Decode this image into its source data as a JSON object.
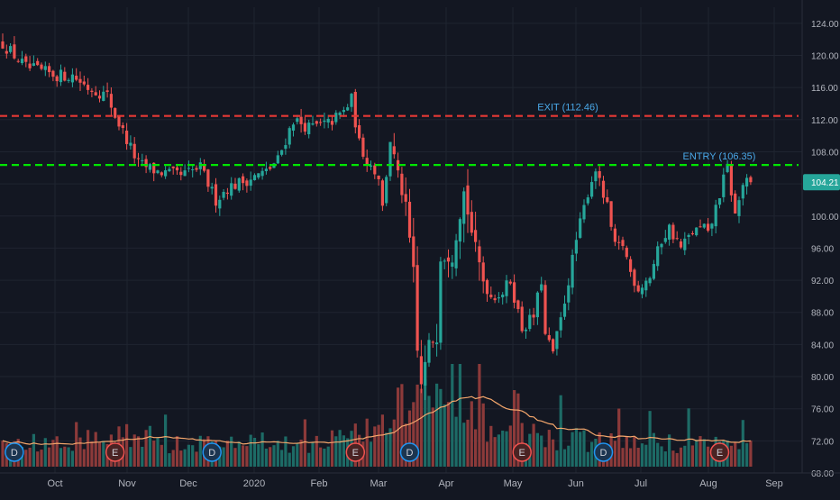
{
  "chart_data": {
    "type": "candlestick",
    "colors": {
      "background": "#131722",
      "grid": "#1f2430",
      "axis_text": "#b2b5be",
      "up": "#26a69a",
      "down": "#ef5350",
      "vol_up": "#1d6b66",
      "vol_down": "#8c3a3a",
      "exit_line": "#e53935",
      "entry_line": "#00e600",
      "label": "#4aa8e8",
      "volume_ma": "#f5a76c",
      "price_badge": "#26a69a"
    },
    "price_axis": {
      "ticks": [
        "124.00",
        "120.00",
        "116.00",
        "112.00",
        "108.00",
        "104.00",
        "100.00",
        "96.00",
        "92.00",
        "88.00",
        "84.00",
        "80.00",
        "76.00",
        "72.00",
        "68.00"
      ],
      "range": [
        68,
        126
      ]
    },
    "time_axis": {
      "labels": [
        "Oct",
        "Nov",
        "Dec",
        "2020",
        "Feb",
        "Mar",
        "Apr",
        "May",
        "Jun",
        "Jul",
        "Aug",
        "Sep"
      ]
    },
    "last_price": "104.21",
    "last_price_value": 104.21,
    "levels": [
      {
        "label": "EXIT (112.46)",
        "value": 112.46,
        "kind": "exit"
      },
      {
        "label": "ENTRY (106.35)",
        "value": 106.35,
        "kind": "entry"
      }
    ],
    "events": [
      {
        "letter": "D",
        "kind": "dividend",
        "bar": 3
      },
      {
        "letter": "E",
        "kind": "earnings",
        "bar": 29
      },
      {
        "letter": "D",
        "kind": "dividend",
        "bar": 54
      },
      {
        "letter": "E",
        "kind": "earnings",
        "bar": 91
      },
      {
        "letter": "D",
        "kind": "dividend",
        "bar": 105
      },
      {
        "letter": "E",
        "kind": "earnings",
        "bar": 134
      },
      {
        "letter": "D",
        "kind": "dividend",
        "bar": 155
      },
      {
        "letter": "E",
        "kind": "earnings",
        "bar": 185
      }
    ],
    "close_keyframes": [
      [
        0,
        121.5
      ],
      [
        6,
        118.5
      ],
      [
        10,
        118.0
      ],
      [
        14,
        117.5
      ],
      [
        18,
        117.5
      ],
      [
        22,
        116.0
      ],
      [
        27,
        115.0
      ],
      [
        29,
        112.5
      ],
      [
        32,
        109.5
      ],
      [
        35,
        106.5
      ],
      [
        40,
        105.5
      ],
      [
        46,
        105.0
      ],
      [
        51,
        106.0
      ],
      [
        55,
        102.0
      ],
      [
        58,
        103.5
      ],
      [
        63,
        104.5
      ],
      [
        68,
        105.5
      ],
      [
        71,
        107.0
      ],
      [
        75,
        112.0
      ],
      [
        79,
        111.0
      ],
      [
        84,
        111.5
      ],
      [
        88,
        113.0
      ],
      [
        90,
        114.5
      ],
      [
        92,
        109.0
      ],
      [
        94,
        107.0
      ],
      [
        97,
        105.0
      ],
      [
        98,
        101.0
      ],
      [
        100,
        109.5
      ],
      [
        102,
        105.0
      ],
      [
        104,
        101.0
      ],
      [
        106,
        93.0
      ],
      [
        107,
        83.0
      ],
      [
        108,
        79.0
      ],
      [
        110,
        84.0
      ],
      [
        112,
        85.0
      ],
      [
        113,
        95.0
      ],
      [
        116,
        95.0
      ],
      [
        119,
        103.0
      ],
      [
        121,
        98.0
      ],
      [
        124,
        92.0
      ],
      [
        126,
        90.0
      ],
      [
        129,
        90.5
      ],
      [
        131,
        92.0
      ],
      [
        134,
        86.0
      ],
      [
        137,
        87.5
      ],
      [
        139,
        92.0
      ],
      [
        140,
        85.0
      ],
      [
        142,
        83.0
      ],
      [
        144,
        87.0
      ],
      [
        148,
        97.0
      ],
      [
        151,
        103.0
      ],
      [
        153,
        106.0
      ],
      [
        154,
        104.0
      ],
      [
        156,
        101.0
      ],
      [
        158,
        96.0
      ],
      [
        160,
        96.5
      ],
      [
        162,
        93.0
      ],
      [
        164,
        91.0
      ],
      [
        167,
        92.5
      ],
      [
        170,
        97.0
      ],
      [
        172,
        98.5
      ],
      [
        175,
        96.0
      ],
      [
        178,
        98.0
      ],
      [
        181,
        98.5
      ],
      [
        182,
        97.5
      ],
      [
        184,
        101.0
      ],
      [
        186,
        104.5
      ],
      [
        187,
        106.0
      ],
      [
        188,
        103.0
      ],
      [
        189,
        100.0
      ],
      [
        191,
        104.0
      ],
      [
        193,
        104.21
      ]
    ],
    "volume_keyframes": [
      [
        0,
        0.22
      ],
      [
        20,
        0.2
      ],
      [
        28,
        0.27
      ],
      [
        33,
        0.3
      ],
      [
        45,
        0.21
      ],
      [
        60,
        0.22
      ],
      [
        80,
        0.22
      ],
      [
        95,
        0.32
      ],
      [
        100,
        0.45
      ],
      [
        104,
        0.6
      ],
      [
        108,
        0.72
      ],
      [
        112,
        0.55
      ],
      [
        118,
        0.45
      ],
      [
        125,
        0.4
      ],
      [
        135,
        0.3
      ],
      [
        150,
        0.24
      ],
      [
        170,
        0.22
      ],
      [
        185,
        0.22
      ],
      [
        193,
        0.2
      ]
    ]
  }
}
